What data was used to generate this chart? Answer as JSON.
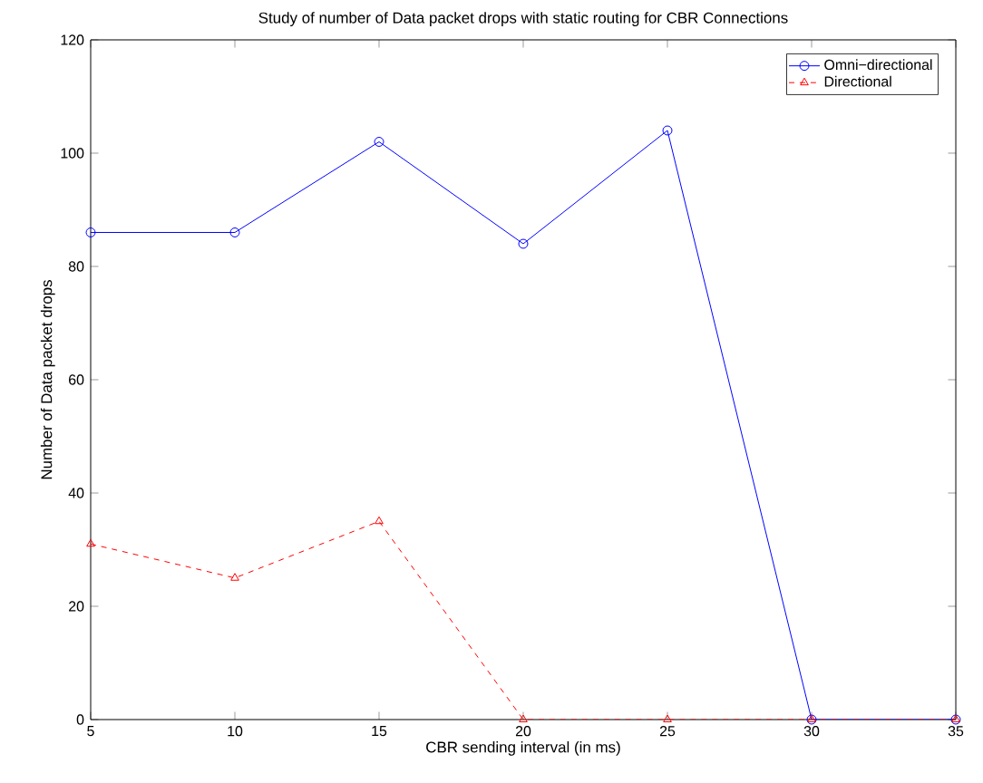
{
  "chart_data": {
    "type": "line",
    "title": "Study of number of Data packet drops with static routing for CBR Connections",
    "xlabel": "CBR sending interval (in ms)",
    "ylabel": "Number of Data packet drops",
    "x": [
      5,
      10,
      15,
      20,
      25,
      30,
      35
    ],
    "series": [
      {
        "name": "Omni−directional",
        "color": "#0000ff",
        "values": [
          86,
          86,
          102,
          84,
          104,
          0,
          0
        ],
        "marker": "circle",
        "line_style": "solid"
      },
      {
        "name": "Directional",
        "color": "#ff0000",
        "values": [
          31,
          25,
          35,
          0,
          0,
          0,
          0
        ],
        "marker": "triangle",
        "line_style": "dashed"
      }
    ],
    "xlim": [
      5,
      35
    ],
    "xticks": [
      5,
      10,
      15,
      20,
      25,
      30,
      35
    ],
    "ylim": [
      0,
      120
    ],
    "yticks": [
      0,
      20,
      40,
      60,
      80,
      100,
      120
    ],
    "grid": false,
    "legend": "top right"
  }
}
